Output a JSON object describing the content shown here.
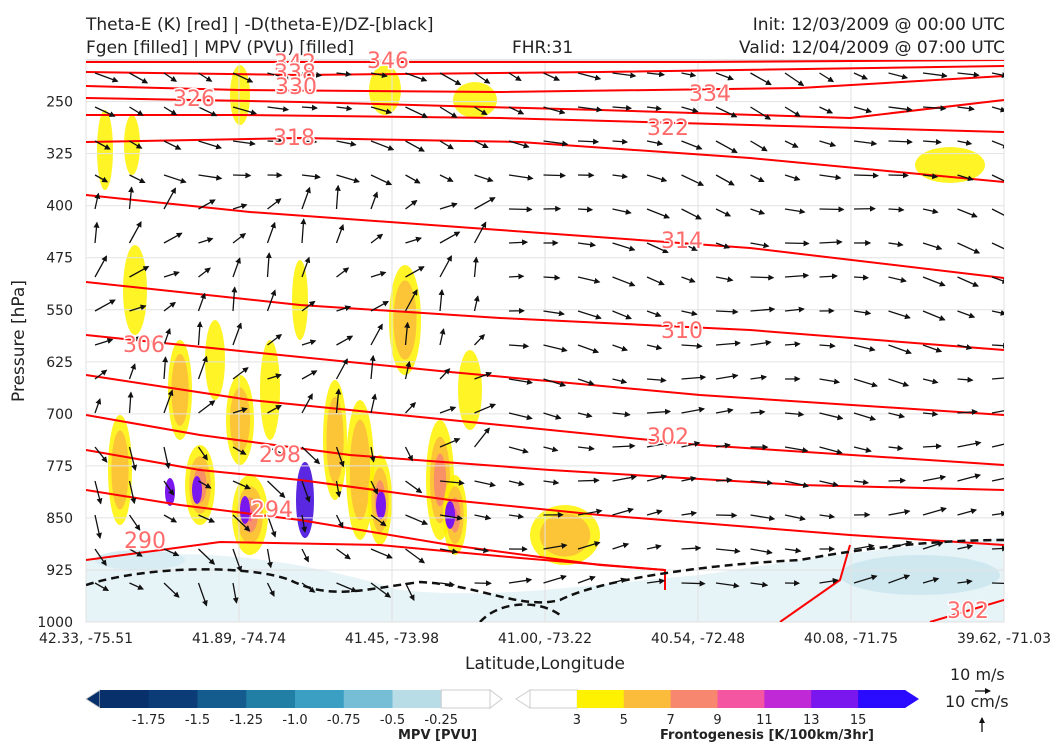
{
  "header": {
    "left_line1": "Theta-E (K) [red] | -D(theta-E)/DZ-[black]",
    "left_line2": "Fgen [filled] | MPV (PVU) [filled]",
    "fhr": "FHR:31",
    "init": "Init: 12/03/2009 @ 00:00 UTC",
    "valid": "Valid: 12/04/2009 @ 07:00 UTC"
  },
  "chart_data": {
    "type": "cross-section",
    "xlabel": "Latitude,Longitude",
    "ylabel": "Pressure [hPa]",
    "x_ticks": [
      "42.33, -75.51",
      "41.89, -74.74",
      "41.45, -73.98",
      "41.00, -73.22",
      "40.54, -72.48",
      "40.08, -71.75",
      "39.62, -71.03"
    ],
    "y_ticks": [
      250,
      325,
      400,
      475,
      550,
      625,
      700,
      775,
      850,
      925,
      1000
    ],
    "ylim": [
      1000,
      190
    ],
    "theta_e_contour_labels": [
      "342",
      "338",
      "346",
      "330",
      "326",
      "334",
      "322",
      "318",
      "314",
      "310",
      "306",
      "302",
      "298",
      "294",
      "290",
      "302"
    ],
    "theta_e_color": "#ff0000",
    "mpv_colorbar": {
      "label": "MPV [PVU]",
      "ticks": [
        "-1.75",
        "-1.5",
        "-1.25",
        "-1.0",
        "-0.75",
        "-0.5",
        "-0.25"
      ],
      "colors": [
        "#08306b",
        "#0b3c77",
        "#135c8d",
        "#217fa5",
        "#3a9fc2",
        "#76bdd6",
        "#b8dde6",
        "#ffffff"
      ]
    },
    "fgen_colorbar": {
      "label": "Frontogenesis [K/100km/3hr]",
      "ticks": [
        "3",
        "5",
        "7",
        "9",
        "11",
        "13",
        "15"
      ],
      "colors": [
        "#ffffff",
        "#fff200",
        "#fbbc3c",
        "#f7886f",
        "#f556a2",
        "#bf29d6",
        "#7a16ee",
        "#2b0bff"
      ]
    },
    "reference_vectors": [
      "10 m/s",
      "10 cm/s"
    ]
  }
}
